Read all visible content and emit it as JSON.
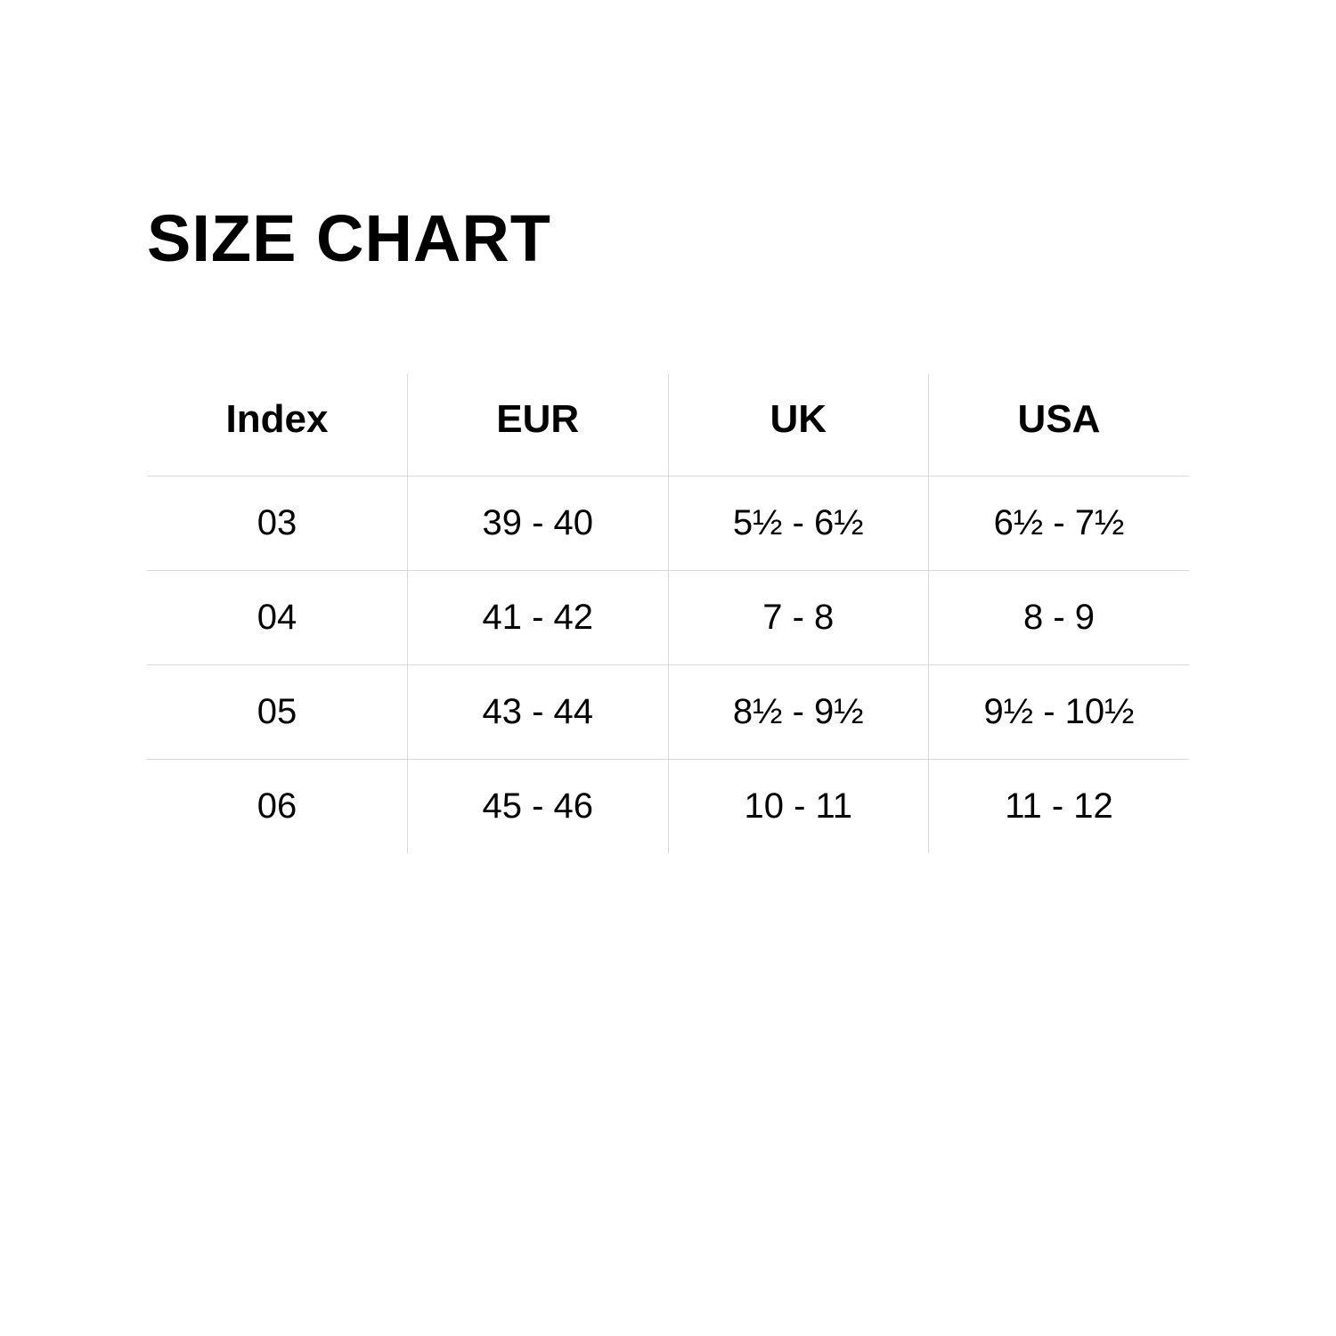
{
  "title": "SIZE CHART",
  "table": {
    "type": "table",
    "background_color": "#ffffff",
    "text_color": "#000000",
    "border_color": "#d9d9d9",
    "header_fontsize": 44,
    "header_fontweight": 700,
    "cell_fontsize": 40,
    "cell_fontweight": 400,
    "columns": [
      "Index",
      "EUR",
      "UK",
      "USA"
    ],
    "rows": [
      [
        "03",
        "39 - 40",
        "5½ - 6½",
        "6½ - 7½"
      ],
      [
        "04",
        "41 - 42",
        "7 - 8",
        "8 - 9"
      ],
      [
        "05",
        "43 - 44",
        "8½ - 9½",
        "9½ - 10½"
      ],
      [
        "06",
        "45 - 46",
        "10 - 11",
        "11 - 12"
      ]
    ]
  }
}
